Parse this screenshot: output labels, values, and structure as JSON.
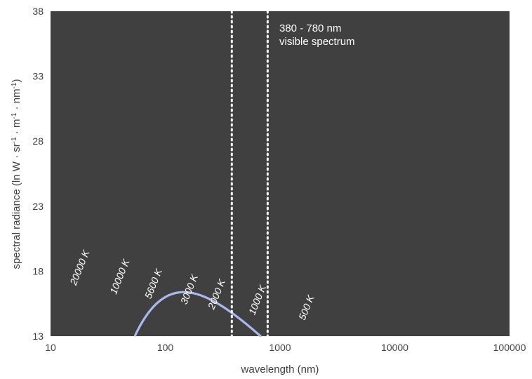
{
  "chart_data": {
    "type": "line",
    "title": "",
    "xlabel": "wavelength (nm)",
    "ylabel": "spectral radiance (ln W · sr-1 · m-1 · nm-1)",
    "ylabel_parts": [
      "spectral radiance (ln W · sr",
      "-1",
      " · m",
      "-1",
      " · nm",
      "-1",
      ")"
    ],
    "xscale": "log",
    "xlim": [
      10,
      100000
    ],
    "ylim": [
      13,
      38
    ],
    "x_ticks": [
      "10",
      "100",
      "1000",
      "10000",
      "100000"
    ],
    "y_ticks": [
      "13",
      "18",
      "23",
      "28",
      "33",
      "38"
    ],
    "grid": false,
    "background": "#404040",
    "annotation": [
      "380 - 780 nm",
      "visible spectrum"
    ],
    "visible_band_nm": [
      380,
      780
    ],
    "series": [
      {
        "name": "20000 K",
        "temperature": 20000,
        "color": "#a9b9f0"
      },
      {
        "name": "10000 K",
        "temperature": 10000,
        "color": "#c4cff7"
      },
      {
        "name": "5600 K",
        "temperature": 5600,
        "color": "#fdf0e4"
      },
      {
        "name": "3000 K",
        "temperature": 3000,
        "color": "#fbc48c"
      },
      {
        "name": "2000 K",
        "temperature": 2000,
        "color": "#f98c26"
      },
      {
        "name": "1000 K",
        "temperature": 1000,
        "color": "#ee2a14"
      },
      {
        "name": "500 K",
        "temperature": 500,
        "color": "#7a0a0a"
      }
    ]
  }
}
